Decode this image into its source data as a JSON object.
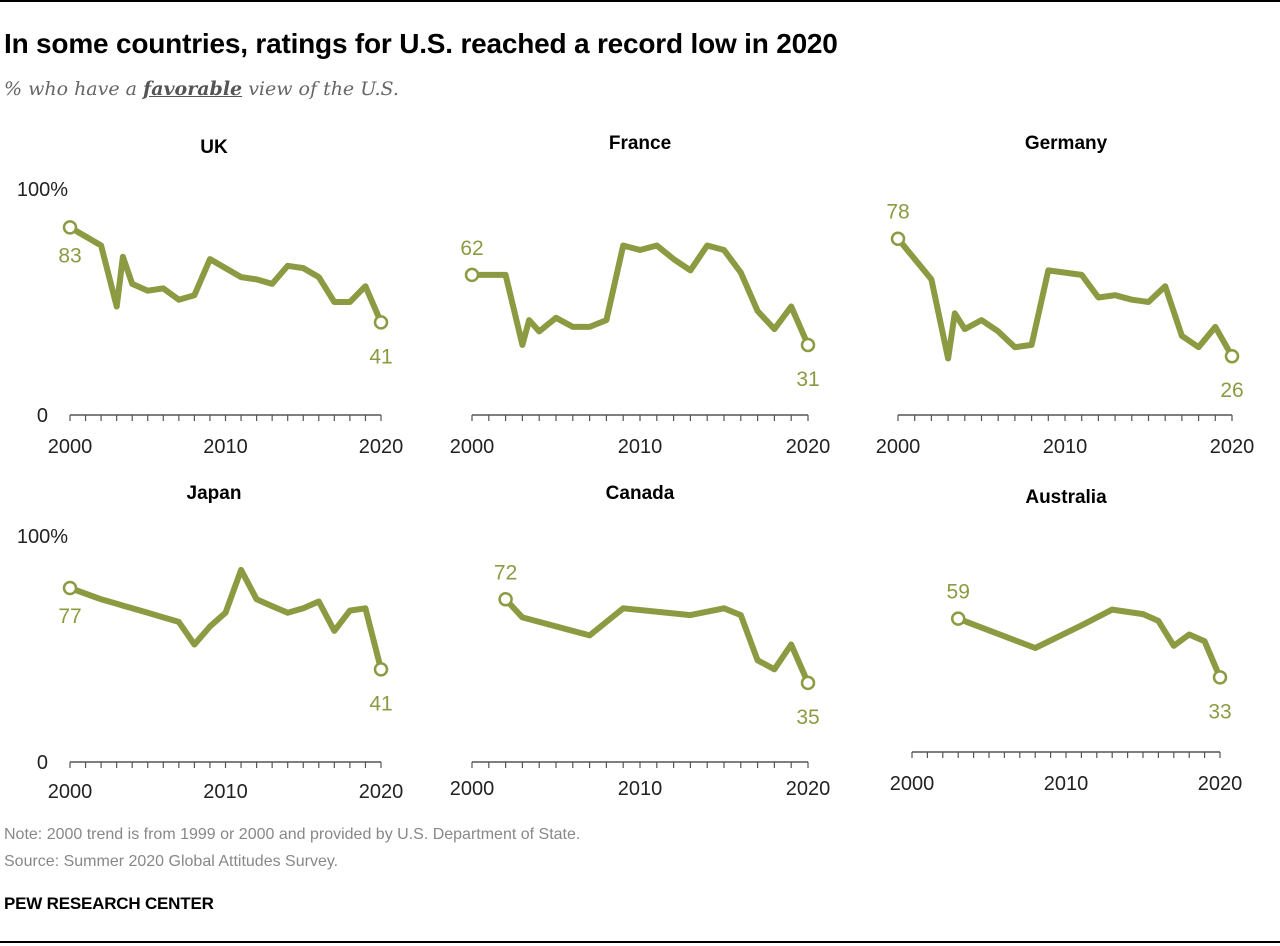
{
  "title": "In some countries, ratings for U.S. reached a record low in 2020",
  "subtitle": {
    "before": "% who have a ",
    "emphasis": "favorable",
    "after": " view of the U.S."
  },
  "note": "Note: 2000 trend is from 1999 or 2000 and provided by U.S. Department of State.",
  "source": "Source: Summer 2020 Global Attitudes Survey.",
  "brand": "PEW RESEARCH CENTER",
  "colors": {
    "line": "#8c9a42",
    "axis": "#555555"
  },
  "chart_data": [
    {
      "type": "line",
      "title": "UK",
      "y_labels": [
        "100%",
        "0"
      ],
      "ylim": [
        0,
        100
      ],
      "xlim": [
        2000,
        2020
      ],
      "x_ticks": [
        "2000",
        "2010",
        "2020"
      ],
      "start_label": "83",
      "end_label": "41",
      "x": [
        2000,
        2002,
        2003,
        2003.4,
        2004,
        2005,
        2006,
        2007,
        2008,
        2009,
        2010,
        2011,
        2012,
        2013,
        2014,
        2015,
        2016,
        2017,
        2018,
        2019,
        2020
      ],
      "y": [
        83,
        75,
        48,
        70,
        58,
        55,
        56,
        51,
        53,
        69,
        65,
        61,
        60,
        58,
        66,
        65,
        61,
        50,
        50,
        57,
        41
      ]
    },
    {
      "type": "line",
      "title": "France",
      "y_labels": [],
      "ylim": [
        0,
        100
      ],
      "xlim": [
        2000,
        2020
      ],
      "x_ticks": [
        "2000",
        "2010",
        "2020"
      ],
      "start_label": "62",
      "end_label": "31",
      "x": [
        2000,
        2002,
        2003,
        2003.4,
        2004,
        2005,
        2006,
        2007,
        2008,
        2009,
        2010,
        2011,
        2012,
        2013,
        2014,
        2015,
        2016,
        2017,
        2018,
        2019,
        2020
      ],
      "y": [
        62,
        62,
        31,
        42,
        37,
        43,
        39,
        39,
        42,
        75,
        73,
        75,
        69,
        64,
        75,
        73,
        63,
        46,
        38,
        48,
        31
      ]
    },
    {
      "type": "line",
      "title": "Germany",
      "y_labels": [],
      "ylim": [
        0,
        100
      ],
      "xlim": [
        2000,
        2020
      ],
      "x_ticks": [
        "2000",
        "2010",
        "2020"
      ],
      "start_label": "78",
      "end_label": "26",
      "x": [
        2000,
        2002,
        2003,
        2003.4,
        2004,
        2005,
        2006,
        2007,
        2008,
        2009,
        2010,
        2011,
        2012,
        2013,
        2014,
        2015,
        2016,
        2017,
        2018,
        2019,
        2020
      ],
      "y": [
        78,
        60,
        25,
        45,
        38,
        42,
        37,
        30,
        31,
        64,
        63,
        62,
        52,
        53,
        51,
        50,
        57,
        35,
        30,
        39,
        26
      ]
    },
    {
      "type": "line",
      "title": "Japan",
      "y_labels": [
        "100%",
        "0"
      ],
      "ylim": [
        0,
        100
      ],
      "xlim": [
        2000,
        2020
      ],
      "x_ticks": [
        "2000",
        "2010",
        "2020"
      ],
      "start_label": "77",
      "end_label": "41",
      "x": [
        2000,
        2002,
        2003,
        2004,
        2005,
        2006,
        2007,
        2008,
        2009,
        2010,
        2011,
        2012,
        2013,
        2014,
        2015,
        2016,
        2017,
        2018,
        2019,
        2020
      ],
      "y": [
        77,
        72,
        70,
        68,
        66,
        64,
        62,
        52,
        60,
        66,
        85,
        72,
        69,
        66,
        68,
        71,
        58,
        67,
        68,
        41
      ]
    },
    {
      "type": "line",
      "title": "Canada",
      "y_labels": [],
      "ylim": [
        0,
        100
      ],
      "xlim": [
        2000,
        2020
      ],
      "x_ticks": [
        "2000",
        "2010",
        "2020"
      ],
      "start_label": "72",
      "end_label": "35",
      "x": [
        2002,
        2003,
        2007,
        2009,
        2013,
        2015,
        2016,
        2017,
        2018,
        2019,
        2020
      ],
      "y": [
        72,
        64,
        56,
        68,
        65,
        68,
        65,
        45,
        41,
        52,
        35
      ]
    },
    {
      "type": "line",
      "title": "Australia",
      "y_labels": [],
      "ylim": [
        0,
        100
      ],
      "xlim": [
        2000,
        2020
      ],
      "x_ticks": [
        "2000",
        "2010",
        "2020"
      ],
      "start_label": "59",
      "end_label": "33",
      "x": [
        2003,
        2008,
        2011,
        2013,
        2015,
        2016,
        2017,
        2018,
        2019,
        2020
      ],
      "y": [
        59,
        46,
        56,
        63,
        61,
        58,
        47,
        52,
        49,
        33
      ]
    }
  ]
}
